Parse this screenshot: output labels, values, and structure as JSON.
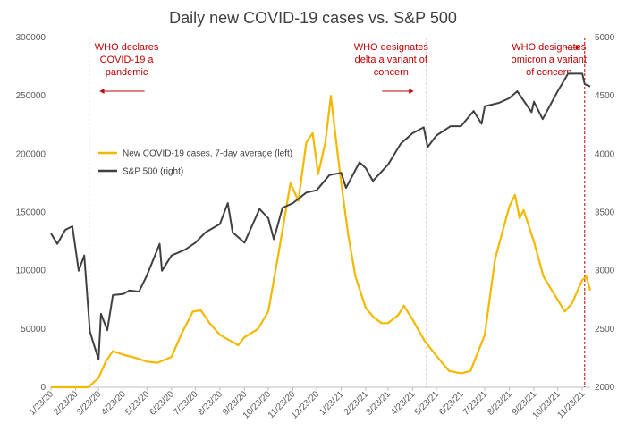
{
  "chart_data": {
    "type": "line",
    "title": "Daily new COVID-19 cases vs. S&P 500",
    "x_tick_labels": [
      "1/23/20",
      "2/23/20",
      "3/23/20",
      "4/23/20",
      "5/23/20",
      "6/23/20",
      "7/23/20",
      "8/23/20",
      "9/23/20",
      "10/23/20",
      "11/23/20",
      "12/23/20",
      "1/23/21",
      "2/23/21",
      "3/23/21",
      "4/23/21",
      "5/23/21",
      "6/23/21",
      "7/23/21",
      "8/23/21",
      "9/23/21",
      "10/23/21",
      "11/23/21"
    ],
    "y_left": {
      "ticks": [
        "0",
        "50000",
        "100000",
        "150000",
        "200000",
        "250000",
        "300000"
      ],
      "range": [
        0,
        300000
      ]
    },
    "y_right": {
      "ticks": [
        "2000",
        "2500",
        "3000",
        "3500",
        "4000",
        "4500",
        "5000"
      ],
      "range": [
        2000,
        5000
      ]
    },
    "grid": false,
    "legend_position": "center-left",
    "series": [
      {
        "name": "New COVID-19 cases, 7-day average (left)",
        "axis": "left",
        "color": "#f5b800",
        "points": [
          [
            "1/23/20",
            0
          ],
          [
            "2/23/20",
            0
          ],
          [
            "3/10/20",
            0
          ],
          [
            "3/23/20",
            8000
          ],
          [
            "4/1/20",
            22000
          ],
          [
            "4/10/20",
            31000
          ],
          [
            "4/23/20",
            28000
          ],
          [
            "5/10/20",
            25000
          ],
          [
            "5/23/20",
            22000
          ],
          [
            "6/5/20",
            21000
          ],
          [
            "6/23/20",
            26000
          ],
          [
            "7/5/20",
            45000
          ],
          [
            "7/20/20",
            65000
          ],
          [
            "7/30/20",
            66000
          ],
          [
            "8/10/20",
            55000
          ],
          [
            "8/23/20",
            45000
          ],
          [
            "9/5/20",
            40000
          ],
          [
            "9/15/20",
            36000
          ],
          [
            "9/23/20",
            43000
          ],
          [
            "10/10/20",
            50000
          ],
          [
            "10/23/20",
            65000
          ],
          [
            "11/5/20",
            115000
          ],
          [
            "11/20/20",
            175000
          ],
          [
            "11/30/20",
            160000
          ],
          [
            "12/10/20",
            210000
          ],
          [
            "12/18/20",
            218000
          ],
          [
            "12/25/20",
            183000
          ],
          [
            "1/3/21",
            210000
          ],
          [
            "1/10/21",
            250000
          ],
          [
            "1/16/21",
            215000
          ],
          [
            "1/23/21",
            175000
          ],
          [
            "2/1/21",
            130000
          ],
          [
            "2/10/21",
            95000
          ],
          [
            "2/23/21",
            68000
          ],
          [
            "3/5/21",
            60000
          ],
          [
            "3/15/21",
            55000
          ],
          [
            "3/23/21",
            55000
          ],
          [
            "4/5/21",
            62000
          ],
          [
            "4/12/21",
            70000
          ],
          [
            "4/23/21",
            58000
          ],
          [
            "5/8/21",
            40000
          ],
          [
            "5/23/21",
            27000
          ],
          [
            "6/8/21",
            14000
          ],
          [
            "6/23/21",
            12000
          ],
          [
            "7/5/21",
            14000
          ],
          [
            "7/23/21",
            45000
          ],
          [
            "8/5/21",
            110000
          ],
          [
            "8/23/21",
            155000
          ],
          [
            "8/30/21",
            165000
          ],
          [
            "9/5/21",
            145000
          ],
          [
            "9/10/21",
            152000
          ],
          [
            "9/23/21",
            125000
          ],
          [
            "10/5/21",
            95000
          ],
          [
            "10/23/21",
            75000
          ],
          [
            "11/1/21",
            65000
          ],
          [
            "11/10/21",
            72000
          ],
          [
            "11/23/21",
            92000
          ],
          [
            "11/28/21",
            95000
          ],
          [
            "12/3/21",
            83000
          ]
        ]
      },
      {
        "name": "S&P 500 (right)",
        "axis": "right",
        "color": "#404040",
        "points": [
          [
            "1/23/20",
            3320
          ],
          [
            "1/31/20",
            3230
          ],
          [
            "2/10/20",
            3350
          ],
          [
            "2/19/20",
            3380
          ],
          [
            "2/27/20",
            3000
          ],
          [
            "3/5/20",
            3130
          ],
          [
            "3/12/20",
            2480
          ],
          [
            "3/16/20",
            2390
          ],
          [
            "3/23/20",
            2240
          ],
          [
            "3/26/20",
            2630
          ],
          [
            "4/3/20",
            2490
          ],
          [
            "4/10/20",
            2790
          ],
          [
            "4/23/20",
            2800
          ],
          [
            "5/1/20",
            2830
          ],
          [
            "5/13/20",
            2820
          ],
          [
            "5/23/20",
            2960
          ],
          [
            "6/8/20",
            3230
          ],
          [
            "6/11/20",
            3000
          ],
          [
            "6/23/20",
            3130
          ],
          [
            "7/10/20",
            3180
          ],
          [
            "7/23/20",
            3240
          ],
          [
            "8/5/20",
            3330
          ],
          [
            "8/23/20",
            3400
          ],
          [
            "9/2/20",
            3580
          ],
          [
            "9/8/20",
            3330
          ],
          [
            "9/23/20",
            3240
          ],
          [
            "10/12/20",
            3530
          ],
          [
            "10/23/20",
            3450
          ],
          [
            "10/30/20",
            3270
          ],
          [
            "11/10/20",
            3540
          ],
          [
            "11/23/20",
            3580
          ],
          [
            "12/10/20",
            3670
          ],
          [
            "12/23/20",
            3690
          ],
          [
            "1/8/21",
            3820
          ],
          [
            "1/23/21",
            3840
          ],
          [
            "1/29/21",
            3710
          ],
          [
            "2/15/21",
            3930
          ],
          [
            "2/23/21",
            3880
          ],
          [
            "3/4/21",
            3770
          ],
          [
            "3/23/21",
            3910
          ],
          [
            "4/8/21",
            4090
          ],
          [
            "4/23/21",
            4180
          ],
          [
            "5/7/21",
            4230
          ],
          [
            "5/12/21",
            4060
          ],
          [
            "5/23/21",
            4160
          ],
          [
            "6/10/21",
            4240
          ],
          [
            "6/23/21",
            4240
          ],
          [
            "7/9/21",
            4370
          ],
          [
            "7/19/21",
            4260
          ],
          [
            "7/23/21",
            4410
          ],
          [
            "8/10/21",
            4440
          ],
          [
            "8/23/21",
            4480
          ],
          [
            "9/2/21",
            4540
          ],
          [
            "9/20/21",
            4360
          ],
          [
            "9/23/21",
            4450
          ],
          [
            "10/4/21",
            4300
          ],
          [
            "10/23/21",
            4540
          ],
          [
            "11/5/21",
            4690
          ],
          [
            "11/23/21",
            4690
          ],
          [
            "11/26/21",
            4600
          ],
          [
            "12/3/21",
            4580
          ]
        ]
      }
    ],
    "annotations": [
      {
        "date": "3/11/20",
        "lines": [
          "WHO declares",
          "COVID-19 a",
          "pandemic"
        ],
        "arrow": "left"
      },
      {
        "date": "5/11/21",
        "lines": [
          "WHO designates",
          "delta a variant of",
          "concern"
        ],
        "arrow": "right"
      },
      {
        "date": "11/26/21",
        "lines": [
          "WHO designates",
          "omicron a variant",
          "of concern"
        ],
        "arrow": "right"
      }
    ]
  }
}
